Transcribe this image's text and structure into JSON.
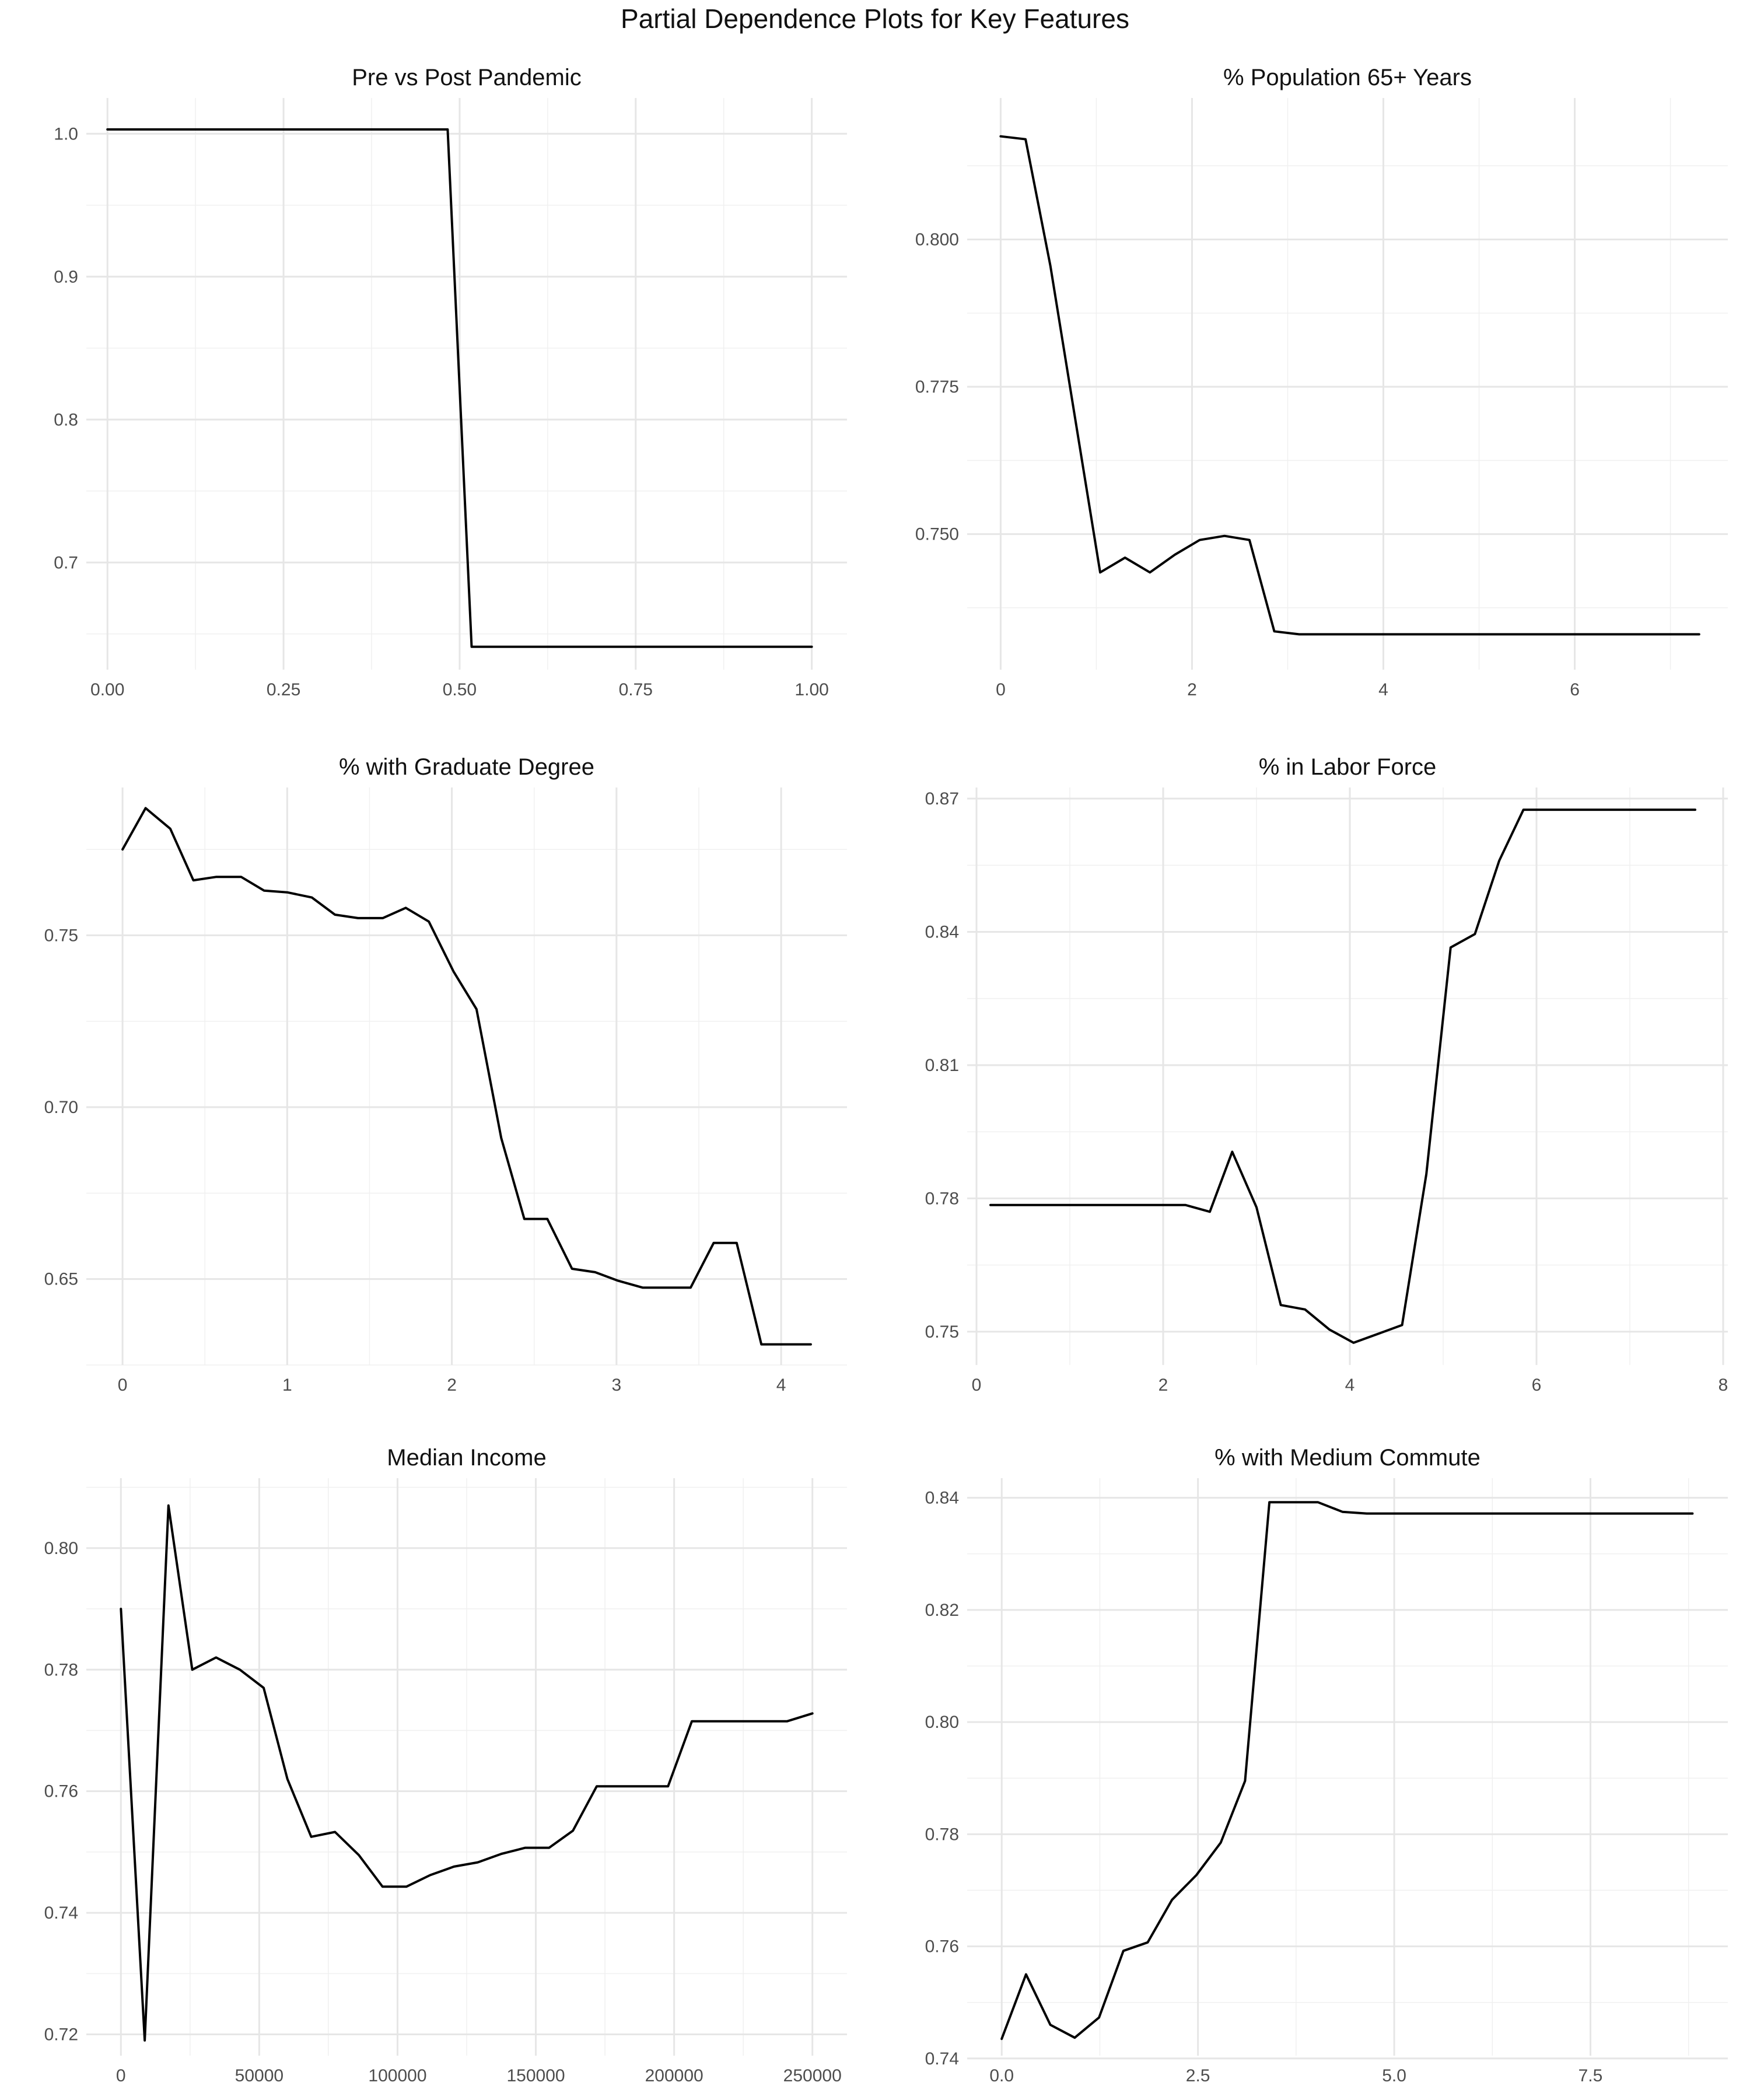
{
  "figure": {
    "title": "Partial Dependence Plots for Key Features"
  },
  "chart_data": [
    {
      "type": "line",
      "title": "Pre vs Post Pandemic",
      "xlabel": "",
      "ylabel": "",
      "xlim": [
        -0.03,
        1.05
      ],
      "ylim": [
        0.625,
        1.025
      ],
      "xticks": [
        0.0,
        0.25,
        0.5,
        0.75,
        1.0
      ],
      "xtick_labels": [
        "0.00",
        "0.25",
        "0.50",
        "0.75",
        "1.00"
      ],
      "yticks": [
        0.7,
        0.8,
        0.9,
        1.0
      ],
      "ytick_labels": [
        "0.7",
        "0.8",
        "0.9",
        "1.0"
      ],
      "grid": true,
      "series": [
        {
          "x": [
            0.0,
            0.483,
            0.517,
            1.0
          ],
          "y": [
            1.003,
            1.003,
            0.641,
            0.641
          ]
        }
      ]
    },
    {
      "type": "line",
      "title": "% Population 65+ Years",
      "xlabel": "",
      "ylabel": "",
      "xlim": [
        -0.35,
        7.6
      ],
      "ylim": [
        0.727,
        0.824
      ],
      "xticks": [
        0,
        2,
        4,
        6
      ],
      "xtick_labels": [
        "0",
        "2",
        "4",
        "6"
      ],
      "yticks": [
        0.75,
        0.775,
        0.8
      ],
      "ytick_labels": [
        "0.750",
        "0.775",
        "0.800"
      ],
      "grid": true,
      "series": [
        {
          "x": [
            0.0,
            0.26,
            0.52,
            0.78,
            1.04,
            1.3,
            1.56,
            1.82,
            2.08,
            2.34,
            2.6,
            2.86,
            3.12,
            4.0,
            5.0,
            6.0,
            7.3
          ],
          "y": [
            0.8175,
            0.817,
            0.7955,
            0.7695,
            0.7435,
            0.746,
            0.7435,
            0.7465,
            0.749,
            0.7497,
            0.749,
            0.7335,
            0.733,
            0.733,
            0.733,
            0.733,
            0.733
          ]
        }
      ]
    },
    {
      "type": "line",
      "title": "% with Graduate Degree",
      "xlabel": "",
      "ylabel": "",
      "xlim": [
        -0.22,
        4.4
      ],
      "ylim": [
        0.625,
        0.793
      ],
      "xticks": [
        0,
        1,
        2,
        3,
        4
      ],
      "xtick_labels": [
        "0",
        "1",
        "2",
        "3",
        "4"
      ],
      "yticks": [
        0.65,
        0.7,
        0.75
      ],
      "ytick_labels": [
        "0.65",
        "0.70",
        "0.75"
      ],
      "grid": true,
      "series": [
        {
          "x": [
            0.0,
            0.14,
            0.29,
            0.43,
            0.57,
            0.72,
            0.86,
            1.0,
            1.15,
            1.29,
            1.43,
            1.58,
            1.72,
            1.86,
            2.01,
            2.15,
            2.3,
            2.44,
            2.58,
            2.73,
            2.87,
            3.01,
            3.16,
            3.3,
            3.45,
            3.59,
            3.73,
            3.88,
            4.02,
            4.18
          ],
          "y": [
            0.775,
            0.787,
            0.781,
            0.766,
            0.767,
            0.767,
            0.763,
            0.7625,
            0.761,
            0.756,
            0.755,
            0.755,
            0.758,
            0.754,
            0.7395,
            0.7285,
            0.691,
            0.6675,
            0.6675,
            0.653,
            0.652,
            0.6495,
            0.6475,
            0.6475,
            0.6475,
            0.6605,
            0.6605,
            0.631,
            0.631,
            0.631
          ]
        }
      ]
    },
    {
      "type": "line",
      "title": "% in Labor Force",
      "xlabel": "",
      "ylabel": "",
      "xlim": [
        -0.1,
        8.05
      ],
      "ylim": [
        0.7425,
        0.8725
      ],
      "xticks": [
        0,
        2,
        4,
        6,
        8
      ],
      "xtick_labels": [
        "0",
        "2",
        "4",
        "6",
        "8"
      ],
      "yticks": [
        0.75,
        0.78,
        0.81,
        0.84,
        0.87
      ],
      "ytick_labels": [
        "0.75",
        "0.78",
        "0.81",
        "0.84",
        "0.87"
      ],
      "grid": true,
      "series": [
        {
          "x": [
            0.15,
            1.0,
            2.0,
            2.24,
            2.5,
            2.74,
            3.0,
            3.26,
            3.52,
            3.78,
            4.04,
            4.3,
            4.56,
            4.82,
            5.08,
            5.34,
            5.6,
            5.86,
            7.0,
            7.7
          ],
          "y": [
            0.7785,
            0.7785,
            0.7785,
            0.7785,
            0.777,
            0.7905,
            0.778,
            0.756,
            0.755,
            0.7505,
            0.7475,
            0.7495,
            0.7515,
            0.7855,
            0.8365,
            0.8395,
            0.856,
            0.8675,
            0.8675,
            0.8675
          ]
        }
      ]
    },
    {
      "type": "line",
      "title": "Median Income",
      "xlabel": "",
      "ylabel": "",
      "xlim": [
        -12500,
        262500
      ],
      "ylim": [
        0.7165,
        0.8115
      ],
      "xticks": [
        0,
        50000,
        100000,
        150000,
        200000,
        250000
      ],
      "xtick_labels": [
        "0",
        "50000",
        "100000",
        "150000",
        "200000",
        "250000"
      ],
      "yticks": [
        0.72,
        0.74,
        0.76,
        0.78,
        0.8
      ],
      "ytick_labels": [
        "0.72",
        "0.74",
        "0.76",
        "0.78",
        "0.80"
      ],
      "grid": true,
      "series": [
        {
          "x": [
            0,
            8600,
            17200,
            25800,
            34400,
            43000,
            51600,
            60200,
            68800,
            77400,
            86000,
            94600,
            103200,
            111800,
            120400,
            129000,
            137600,
            146200,
            154800,
            163400,
            172000,
            180600,
            189200,
            197800,
            206400,
            215000,
            223600,
            232200,
            240800,
            250000
          ],
          "y": [
            0.79,
            0.719,
            0.807,
            0.78,
            0.782,
            0.78,
            0.777,
            0.762,
            0.7525,
            0.7533,
            0.7495,
            0.7443,
            0.7443,
            0.7462,
            0.7476,
            0.7483,
            0.7497,
            0.7507,
            0.7507,
            0.7535,
            0.7608,
            0.7608,
            0.7608,
            0.7608,
            0.7715,
            0.7715,
            0.7715,
            0.7715,
            0.7715,
            0.7728
          ]
        }
      ]
    },
    {
      "type": "line",
      "title": "% with Medium Commute",
      "xlabel": "",
      "ylabel": "",
      "xlim": [
        -0.44,
        9.25
      ],
      "ylim": [
        0.7405,
        0.8435
      ],
      "xticks": [
        0.0,
        2.5,
        5.0,
        7.5
      ],
      "xtick_labels": [
        "0.0",
        "2.5",
        "5.0",
        "7.5"
      ],
      "yticks": [
        0.74,
        0.76,
        0.78,
        0.8,
        0.82,
        0.84
      ],
      "ytick_labels": [
        "0.74",
        "0.76",
        "0.78",
        "0.80",
        "0.82",
        "0.84"
      ],
      "grid": true,
      "series": [
        {
          "x": [
            0.0,
            0.31,
            0.62,
            0.93,
            1.24,
            1.55,
            1.86,
            2.17,
            2.48,
            2.79,
            3.1,
            3.41,
            3.72,
            4.03,
            4.34,
            4.65,
            6.0,
            7.5,
            8.8
          ],
          "y": [
            0.7435,
            0.755,
            0.746,
            0.7437,
            0.7473,
            0.7592,
            0.7607,
            0.7683,
            0.7727,
            0.7785,
            0.7895,
            0.8392,
            0.8392,
            0.8392,
            0.8375,
            0.8372,
            0.8372,
            0.8372,
            0.8372
          ]
        }
      ]
    }
  ]
}
